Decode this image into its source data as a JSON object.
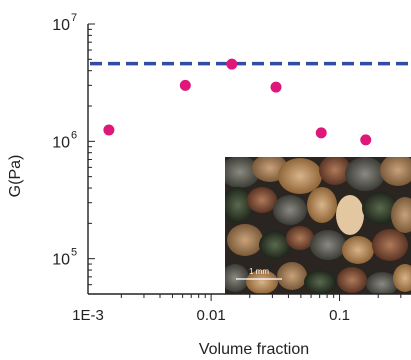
{
  "chart_data": {
    "type": "scatter",
    "xlabel": "Volume fraction",
    "ylabel": "G(Pa)",
    "x_scale": "log",
    "y_scale": "log",
    "xlim": [
      0.0011,
      0.36
    ],
    "ylim": [
      50000,
      10000000
    ],
    "x_ticks": [
      {
        "value": 0.001,
        "label": "1E-3"
      },
      {
        "value": 0.01,
        "label": "0.01"
      },
      {
        "value": 0.1,
        "label": "0.1"
      }
    ],
    "y_ticks": [
      {
        "value": 100000,
        "base": "10",
        "exp": "5"
      },
      {
        "value": 1000000,
        "base": "10",
        "exp": "6"
      },
      {
        "value": 10000000,
        "base": "10",
        "exp": "7"
      }
    ],
    "series": [
      {
        "points": [
          {
            "x": 0.0016,
            "y": 1250000
          },
          {
            "x": 0.0063,
            "y": 3000000
          },
          {
            "x": 0.0145,
            "y": 4550000
          },
          {
            "x": 0.032,
            "y": 2900000
          },
          {
            "x": 0.072,
            "y": 1180000
          },
          {
            "x": 0.16,
            "y": 1030000
          }
        ]
      }
    ],
    "reference_line": {
      "y": 4600000,
      "style": "dashed"
    },
    "inset": {
      "scale_label": "1 mm"
    },
    "colors": {
      "points": "#e0177a",
      "reference_line": "#2f4ea3",
      "axis": "#222222"
    }
  }
}
